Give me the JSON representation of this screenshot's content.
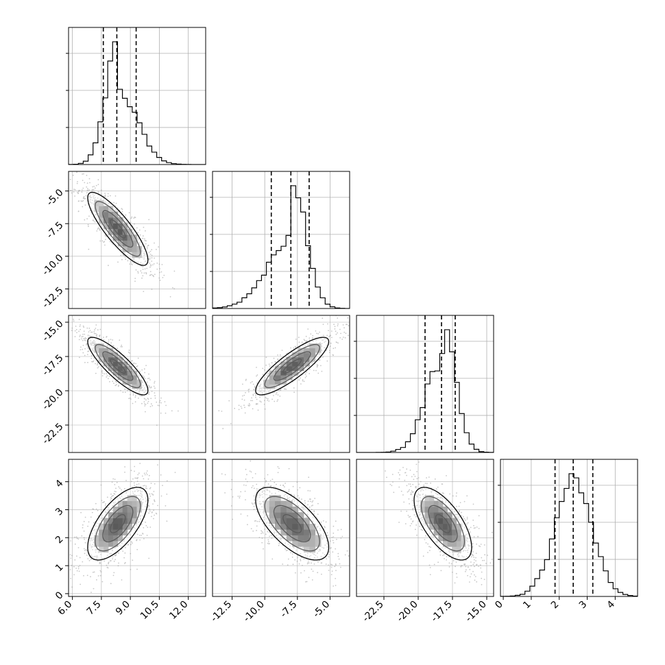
{
  "chart_data": {
    "type": "corner",
    "title": "",
    "params": [
      {
        "key": "p0",
        "ticks": [
          "6.0",
          "7.5",
          "9.0",
          "10.5",
          "12.0"
        ],
        "tick_values": [
          6.0,
          7.5,
          9.0,
          10.5,
          12.0
        ],
        "range": [
          5.8,
          12.9
        ],
        "quantiles": [
          7.6,
          8.3,
          9.3
        ],
        "mean": 8.35,
        "sd": 0.78,
        "hist_ticks": 3
      },
      {
        "key": "p1",
        "ticks": [
          "-12.5",
          "-10.0",
          "-7.5",
          "-5.0"
        ],
        "tick_values": [
          -12.5,
          -10.0,
          -7.5,
          -5.0
        ],
        "range": [
          -14.0,
          -3.5
        ],
        "quantiles": [
          -9.5,
          -8.0,
          -6.6
        ],
        "mean": -7.9,
        "sd": 1.4,
        "hist_ticks": 3
      },
      {
        "key": "p2",
        "ticks": [
          "-22.5",
          "-20.0",
          "-17.5",
          "-15.0"
        ],
        "tick_values": [
          -22.5,
          -20.0,
          -17.5,
          -15.0
        ],
        "range": [
          -24.5,
          -14.5
        ],
        "quantiles": [
          -19.5,
          -18.3,
          -17.3
        ],
        "mean": -18.2,
        "sd": 1.05,
        "hist_ticks": 3
      },
      {
        "key": "p3",
        "ticks": [
          "0",
          "1",
          "2",
          "3",
          "4"
        ],
        "tick_values": [
          0,
          1,
          2,
          3,
          4
        ],
        "range": [
          -0.1,
          4.8
        ],
        "quantiles": [
          1.85,
          2.5,
          3.2
        ],
        "mean": 2.5,
        "sd": 0.65,
        "hist_ticks": 3
      }
    ],
    "correlations": [
      [
        1,
        -0.85,
        -0.85,
        0.65
      ],
      [
        -0.85,
        1,
        0.85,
        -0.65
      ],
      [
        -0.85,
        0.85,
        1,
        -0.65
      ],
      [
        0.65,
        -0.65,
        -0.65,
        1
      ]
    ],
    "contour_levels_sigma": [
      0.5,
      1.0,
      1.5,
      2.0
    ],
    "grid": true,
    "colors": {
      "points": "#9a9a9a",
      "contours": "#000000",
      "density_dark": "#000000",
      "density_light": "#ffffff",
      "grid": "#b0b0b0",
      "frame": "#000000"
    }
  }
}
